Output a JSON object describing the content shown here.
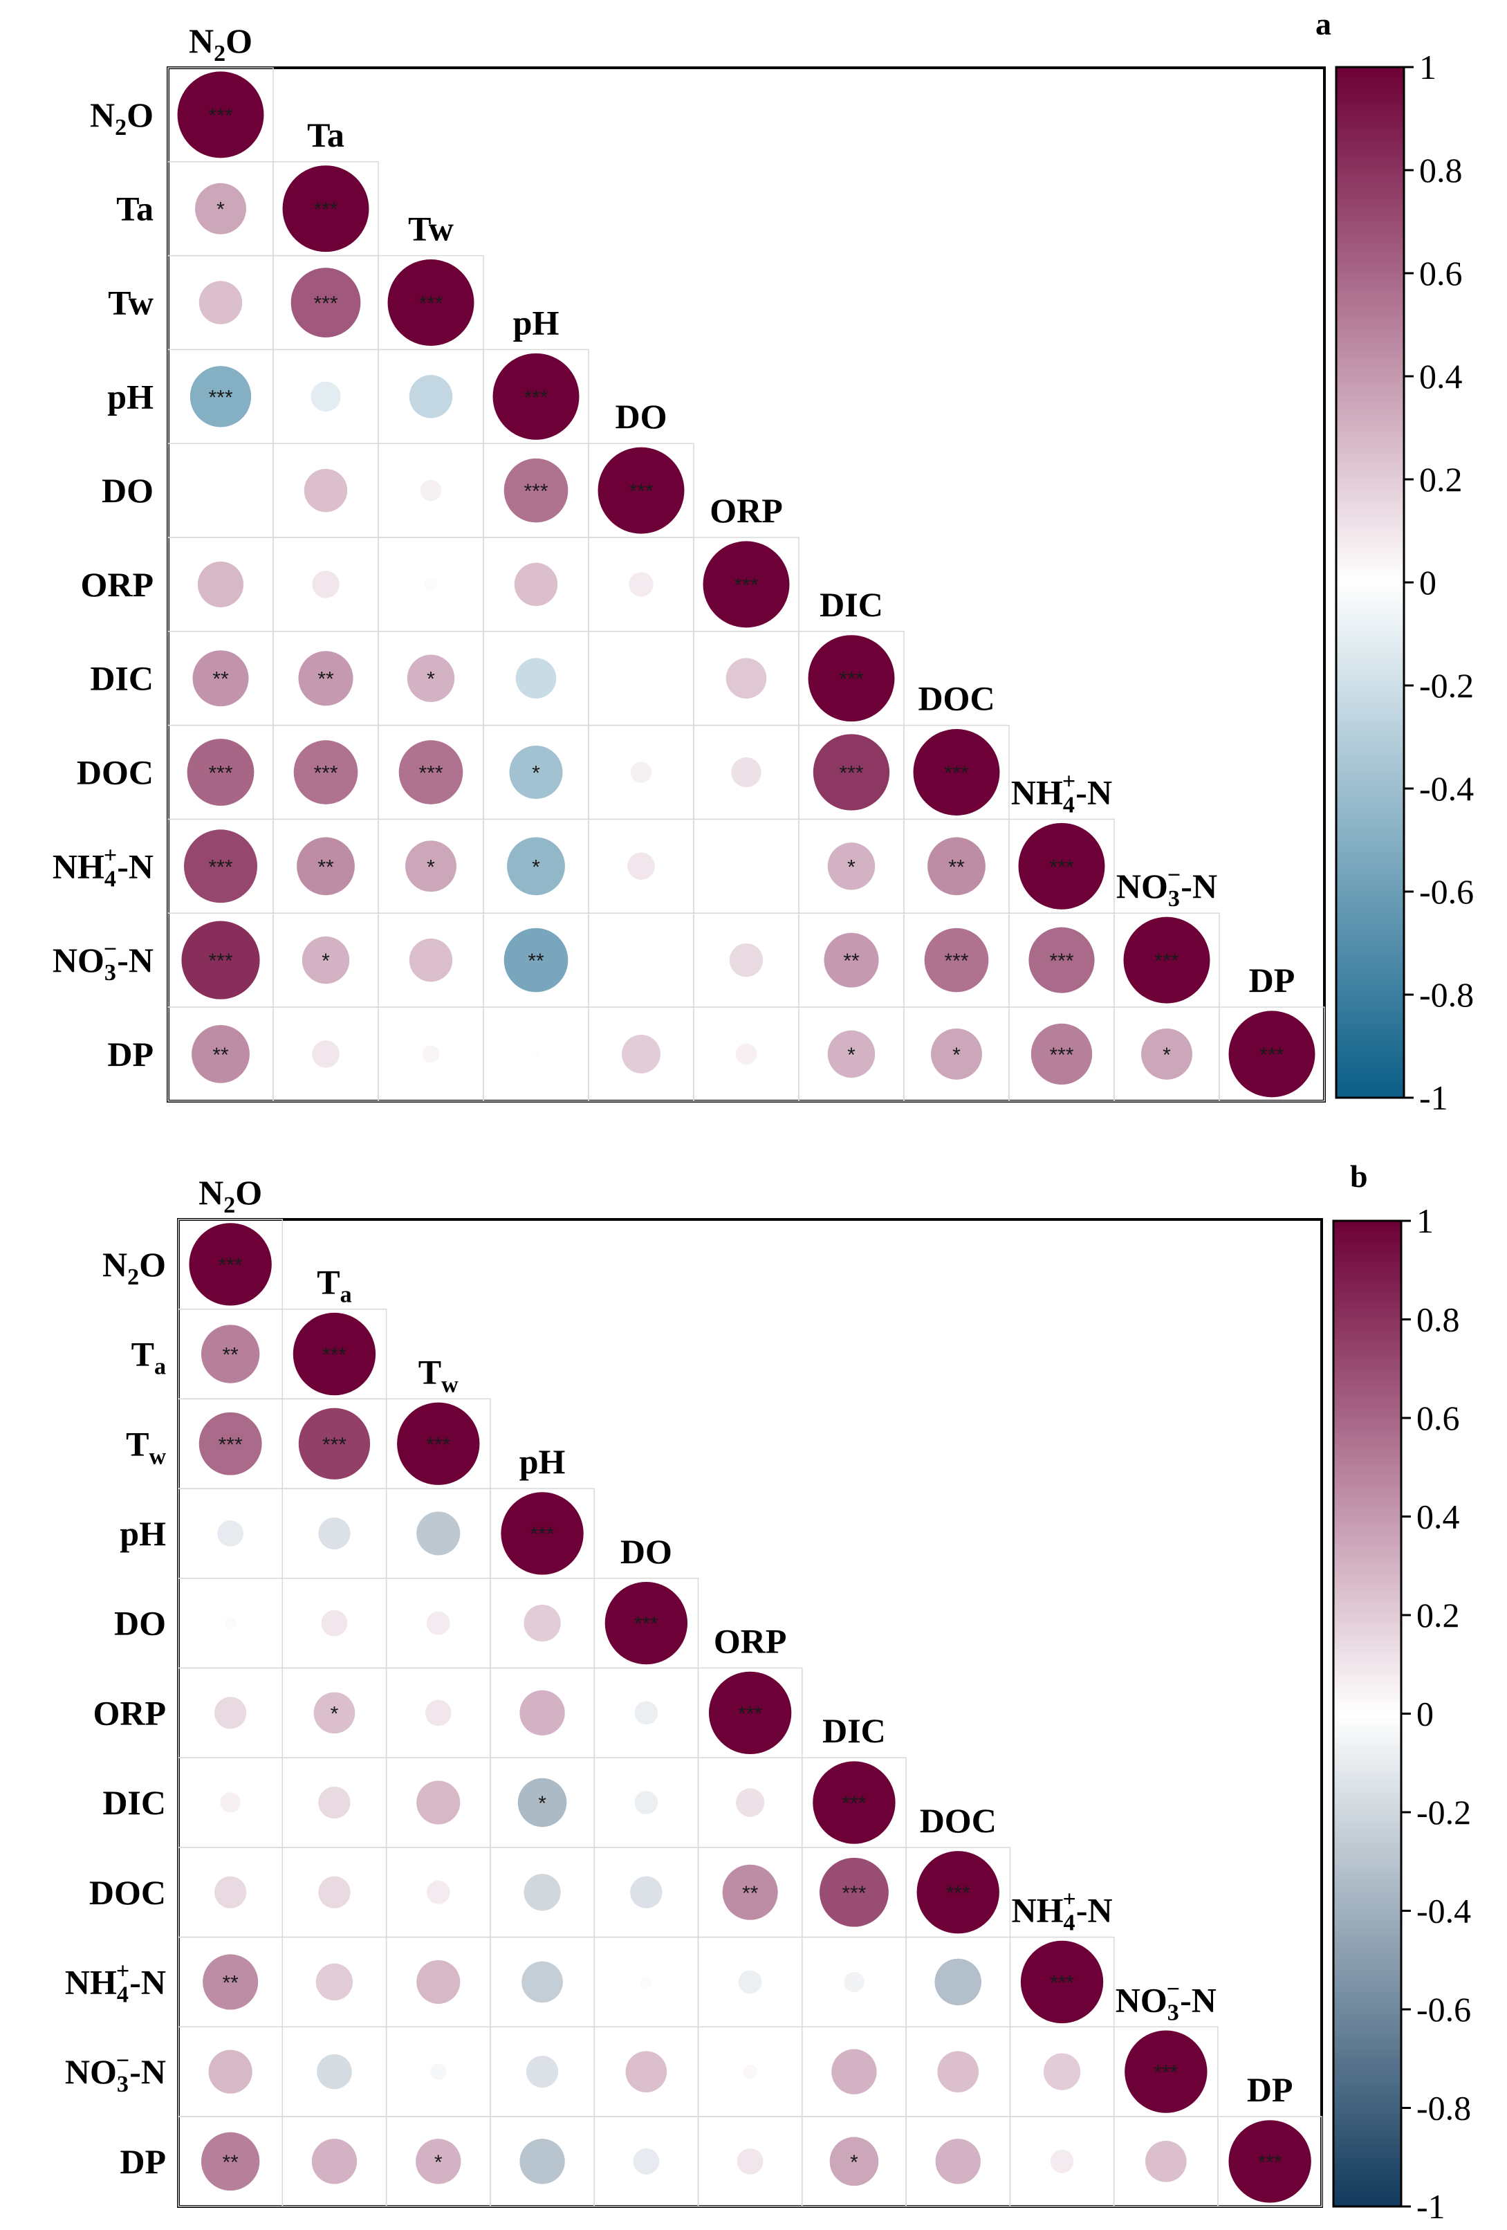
{
  "colorbar": {
    "ticks": [
      "1",
      "0.8",
      "0.6",
      "0.4",
      "0.2",
      "0",
      "-0.2",
      "-0.4",
      "-0.6",
      "-0.8",
      "-1"
    ],
    "colors_a": {
      "neg": "#0b5e87",
      "mid": "#ffffff",
      "pos": "#6d0036"
    },
    "colors_b": {
      "neg": "#123a5c",
      "mid": "#ffffff",
      "pos": "#6d0036"
    }
  },
  "chart_data": [
    {
      "type": "heatmap",
      "panel": "a",
      "title": "a",
      "variables": [
        "N2O",
        "Ta",
        "Tw",
        "pH",
        "DO",
        "ORP",
        "DIC",
        "DOC",
        "NH4+-N",
        "NO3−-N",
        "DP"
      ],
      "row_labels": [
        {
          "main": "N",
          "sub": "2",
          "sup": "",
          "rest": "O"
        },
        {
          "main": "Ta",
          "sub": "",
          "sup": "",
          "rest": ""
        },
        {
          "main": "Tw",
          "sub": "",
          "sup": "",
          "rest": ""
        },
        {
          "main": "pH",
          "sub": "",
          "sup": "",
          "rest": ""
        },
        {
          "main": "DO",
          "sub": "",
          "sup": "",
          "rest": ""
        },
        {
          "main": "ORP",
          "sub": "",
          "sup": "",
          "rest": ""
        },
        {
          "main": "DIC",
          "sub": "",
          "sup": "",
          "rest": ""
        },
        {
          "main": "DOC",
          "sub": "",
          "sup": "",
          "rest": ""
        },
        {
          "main": "NH",
          "sub": "4",
          "sup": "+",
          "rest": "-N"
        },
        {
          "main": "NO",
          "sub": "3",
          "sup": "−",
          "rest": "-N"
        },
        {
          "main": "DP",
          "sub": "",
          "sup": "",
          "rest": ""
        }
      ],
      "matrix": [
        [
          1.0
        ],
        [
          0.35,
          1.0
        ],
        [
          0.25,
          0.65,
          1.0
        ],
        [
          -0.5,
          -0.12,
          -0.25,
          1.0
        ],
        [
          0.0,
          0.25,
          0.06,
          0.55,
          1.0
        ],
        [
          0.28,
          0.1,
          0.02,
          0.25,
          0.08,
          1.0
        ],
        [
          0.42,
          0.4,
          0.3,
          -0.22,
          0.0,
          0.22,
          1.0
        ],
        [
          0.6,
          0.55,
          0.55,
          -0.38,
          0.06,
          0.12,
          0.78,
          1.0
        ],
        [
          0.72,
          0.45,
          0.35,
          -0.45,
          0.1,
          0.0,
          0.3,
          0.45,
          1.0
        ],
        [
          0.82,
          0.3,
          0.25,
          -0.55,
          0.0,
          0.15,
          0.4,
          0.55,
          0.58,
          1.0
        ],
        [
          0.45,
          0.1,
          0.04,
          0.01,
          0.2,
          0.06,
          0.3,
          0.35,
          0.5,
          0.35,
          1.0
        ]
      ],
      "significance": [
        [
          "***"
        ],
        [
          "*",
          "***"
        ],
        [
          "",
          "***",
          "***"
        ],
        [
          "***",
          "",
          "",
          "***"
        ],
        [
          "",
          "",
          "",
          "***",
          "***"
        ],
        [
          "",
          "",
          "",
          "",
          "",
          "***"
        ],
        [
          "**",
          "**",
          "*",
          "",
          "",
          "",
          "***"
        ],
        [
          "***",
          "***",
          "***",
          "*",
          "",
          "",
          "***",
          "***"
        ],
        [
          "***",
          "**",
          "*",
          "*",
          "",
          "",
          "*",
          "**",
          "***"
        ],
        [
          "***",
          "*",
          "",
          "**",
          "",
          "",
          "**",
          "***",
          "***",
          "***"
        ],
        [
          "**",
          "",
          "",
          "",
          "",
          "",
          "*",
          "*",
          "***",
          "*",
          "***"
        ]
      ]
    },
    {
      "type": "heatmap",
      "panel": "b",
      "title": "b",
      "variables": [
        "N2O",
        "Ta",
        "Tw",
        "pH",
        "DO",
        "ORP",
        "DIC",
        "DOC",
        "NH4+-N",
        "NO3−-N",
        "DP"
      ],
      "row_labels": [
        {
          "main": "N",
          "sub": "2",
          "sup": "",
          "rest": "O"
        },
        {
          "main": "T",
          "sub": "a",
          "sup": "",
          "rest": ""
        },
        {
          "main": "T",
          "sub": "w",
          "sup": "",
          "rest": ""
        },
        {
          "main": "pH",
          "sub": "",
          "sup": "",
          "rest": ""
        },
        {
          "main": "DO",
          "sub": "",
          "sup": "",
          "rest": ""
        },
        {
          "main": "ORP",
          "sub": "",
          "sup": "",
          "rest": ""
        },
        {
          "main": "DIC",
          "sub": "",
          "sup": "",
          "rest": ""
        },
        {
          "main": "DOC",
          "sub": "",
          "sup": "",
          "rest": ""
        },
        {
          "main": "NH",
          "sub": "4",
          "sup": "+",
          "rest": "-N"
        },
        {
          "main": "NO",
          "sub": "3",
          "sup": "−",
          "rest": "-N"
        },
        {
          "main": "DP",
          "sub": "",
          "sup": "",
          "rest": ""
        }
      ],
      "matrix": [
        [
          1.0
        ],
        [
          0.5,
          1.0
        ],
        [
          0.58,
          0.75,
          1.0
        ],
        [
          -0.1,
          -0.15,
          -0.28,
          1.0
        ],
        [
          0.02,
          0.1,
          0.08,
          0.2,
          1.0
        ],
        [
          0.15,
          0.25,
          0.1,
          0.3,
          -0.08,
          1.0
        ],
        [
          0.06,
          0.15,
          0.28,
          -0.35,
          -0.08,
          0.12,
          1.0
        ],
        [
          0.15,
          0.15,
          0.08,
          -0.2,
          -0.15,
          0.45,
          0.7,
          1.0
        ],
        [
          0.45,
          0.2,
          0.28,
          -0.25,
          0.02,
          -0.08,
          -0.06,
          -0.32,
          1.0
        ],
        [
          0.28,
          -0.18,
          -0.04,
          -0.15,
          0.25,
          0.03,
          0.3,
          0.25,
          0.2,
          1.0
        ],
        [
          0.5,
          0.3,
          0.3,
          -0.3,
          -0.1,
          0.1,
          0.35,
          0.3,
          0.08,
          0.25,
          1.0
        ]
      ],
      "significance": [
        [
          "***"
        ],
        [
          "**",
          "***"
        ],
        [
          "***",
          "***",
          "***"
        ],
        [
          "",
          "",
          "",
          "***"
        ],
        [
          "",
          "",
          "",
          "",
          "***"
        ],
        [
          "",
          "*",
          "",
          "",
          "",
          "***"
        ],
        [
          "",
          "",
          "",
          "*",
          "",
          "",
          "***"
        ],
        [
          "",
          "",
          "",
          "",
          "",
          "**",
          "***",
          "***"
        ],
        [
          "**",
          "",
          "",
          "",
          "",
          "",
          "",
          "",
          "***"
        ],
        [
          "",
          "",
          "",
          "",
          "",
          "",
          "",
          "",
          "",
          "***"
        ],
        [
          "**",
          "",
          "*",
          "",
          "",
          "",
          "*",
          "",
          "",
          "",
          "***"
        ]
      ]
    }
  ]
}
